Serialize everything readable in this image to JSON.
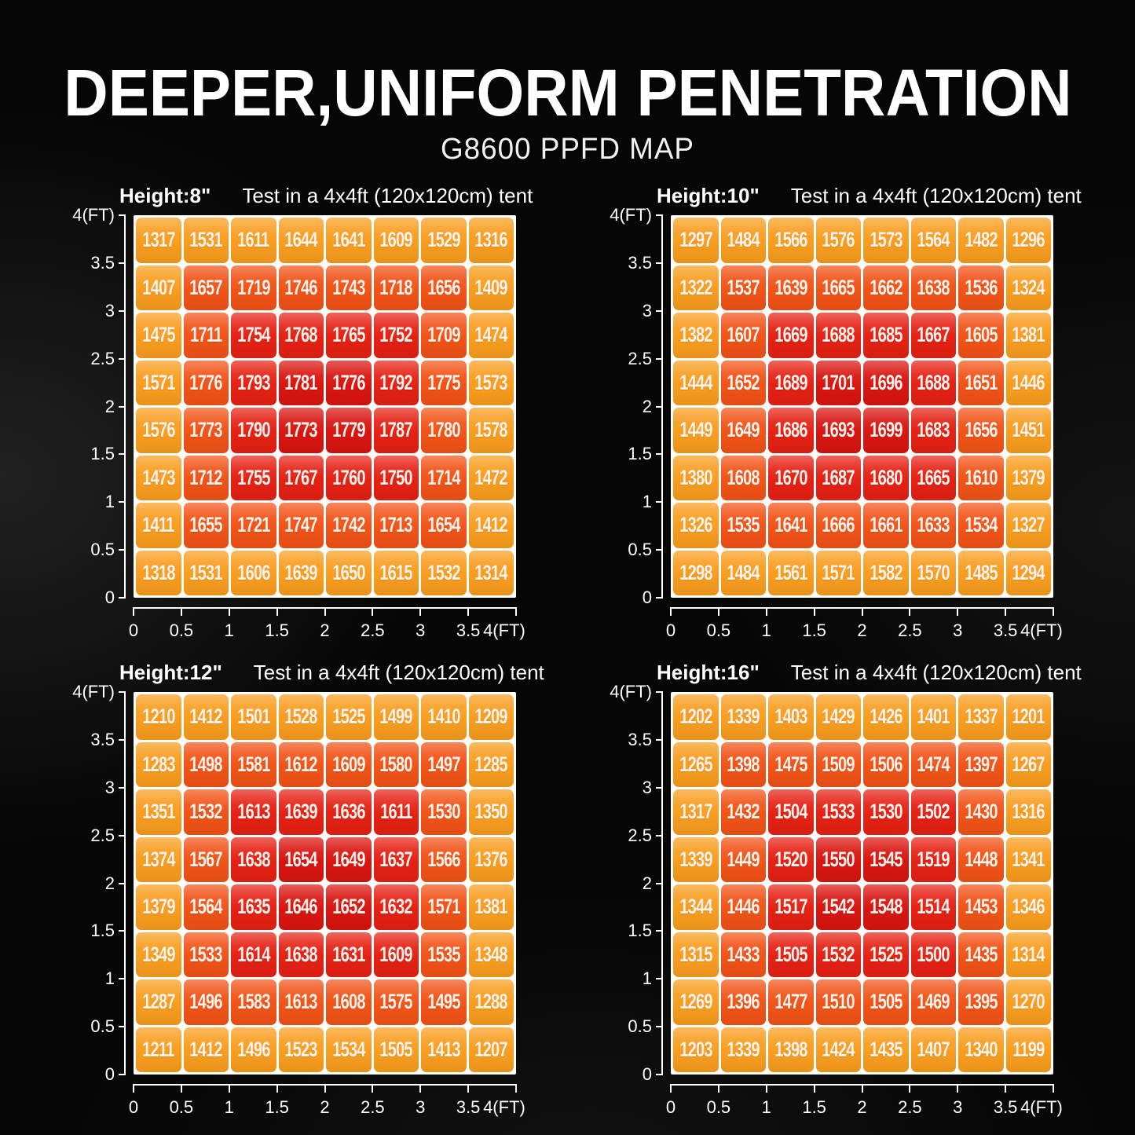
{
  "header": {
    "title": "DEEPER,UNIFORM PENETRATION",
    "subtitle": "G8600 PPFD MAP"
  },
  "colors": {
    "background": "#060606",
    "text": "#ffffff",
    "grid_line": "#ffffff",
    "ring_colors": [
      "#da1510",
      "#e62114",
      "#f25317",
      "#f99d1e"
    ]
  },
  "axis": {
    "y_ticks": [
      "4(FT)",
      "3.5",
      "3",
      "2.5",
      "2",
      "1.5",
      "1",
      "0.5",
      "0"
    ],
    "x_ticks": [
      "0",
      "0.5",
      "1",
      "1.5",
      "2",
      "2.5",
      "3",
      "3.5",
      "4(FT)"
    ]
  },
  "chart_data": [
    {
      "type": "heatmap",
      "height_label": "Height:8\"",
      "tent_label": "Test in a 4x4ft (120x120cm) tent",
      "x_range": [
        0,
        4
      ],
      "y_range": [
        0,
        4
      ],
      "values": [
        [
          1317,
          1531,
          1611,
          1644,
          1641,
          1609,
          1529,
          1316
        ],
        [
          1407,
          1657,
          1719,
          1746,
          1743,
          1718,
          1656,
          1409
        ],
        [
          1475,
          1711,
          1754,
          1768,
          1765,
          1752,
          1709,
          1474
        ],
        [
          1571,
          1776,
          1793,
          1781,
          1776,
          1792,
          1775,
          1573
        ],
        [
          1576,
          1773,
          1790,
          1773,
          1779,
          1787,
          1780,
          1578
        ],
        [
          1473,
          1712,
          1755,
          1767,
          1760,
          1750,
          1714,
          1472
        ],
        [
          1411,
          1655,
          1721,
          1747,
          1742,
          1713,
          1654,
          1412
        ],
        [
          1318,
          1531,
          1606,
          1639,
          1650,
          1615,
          1532,
          1314
        ]
      ]
    },
    {
      "type": "heatmap",
      "height_label": "Height:10\"",
      "tent_label": "Test in a 4x4ft (120x120cm) tent",
      "x_range": [
        0,
        4
      ],
      "y_range": [
        0,
        4
      ],
      "values": [
        [
          1297,
          1484,
          1566,
          1576,
          1573,
          1564,
          1482,
          1296
        ],
        [
          1322,
          1537,
          1639,
          1665,
          1662,
          1638,
          1536,
          1324
        ],
        [
          1382,
          1607,
          1669,
          1688,
          1685,
          1667,
          1605,
          1381
        ],
        [
          1444,
          1652,
          1689,
          1701,
          1696,
          1688,
          1651,
          1446
        ],
        [
          1449,
          1649,
          1686,
          1693,
          1699,
          1683,
          1656,
          1451
        ],
        [
          1380,
          1608,
          1670,
          1687,
          1680,
          1665,
          1610,
          1379
        ],
        [
          1326,
          1535,
          1641,
          1666,
          1661,
          1633,
          1534,
          1327
        ],
        [
          1298,
          1484,
          1561,
          1571,
          1582,
          1570,
          1485,
          1294
        ]
      ]
    },
    {
      "type": "heatmap",
      "height_label": "Height:12\"",
      "tent_label": "Test in a 4x4ft (120x120cm) tent",
      "x_range": [
        0,
        4
      ],
      "y_range": [
        0,
        4
      ],
      "values": [
        [
          1210,
          1412,
          1501,
          1528,
          1525,
          1499,
          1410,
          1209
        ],
        [
          1283,
          1498,
          1581,
          1612,
          1609,
          1580,
          1497,
          1285
        ],
        [
          1351,
          1532,
          1613,
          1639,
          1636,
          1611,
          1530,
          1350
        ],
        [
          1374,
          1567,
          1638,
          1654,
          1649,
          1637,
          1566,
          1376
        ],
        [
          1379,
          1564,
          1635,
          1646,
          1652,
          1632,
          1571,
          1381
        ],
        [
          1349,
          1533,
          1614,
          1638,
          1631,
          1609,
          1535,
          1348
        ],
        [
          1287,
          1496,
          1583,
          1613,
          1608,
          1575,
          1495,
          1288
        ],
        [
          1211,
          1412,
          1496,
          1523,
          1534,
          1505,
          1413,
          1207
        ]
      ]
    },
    {
      "type": "heatmap",
      "height_label": "Height:16\"",
      "tent_label": "Test in a 4x4ft (120x120cm) tent",
      "x_range": [
        0,
        4
      ],
      "y_range": [
        0,
        4
      ],
      "values": [
        [
          1202,
          1339,
          1403,
          1429,
          1426,
          1401,
          1337,
          1201
        ],
        [
          1265,
          1398,
          1475,
          1509,
          1506,
          1474,
          1397,
          1267
        ],
        [
          1317,
          1432,
          1504,
          1533,
          1530,
          1502,
          1430,
          1316
        ],
        [
          1339,
          1449,
          1520,
          1550,
          1545,
          1519,
          1448,
          1341
        ],
        [
          1344,
          1446,
          1517,
          1542,
          1548,
          1514,
          1453,
          1346
        ],
        [
          1315,
          1433,
          1505,
          1532,
          1525,
          1500,
          1435,
          1314
        ],
        [
          1269,
          1396,
          1477,
          1510,
          1505,
          1469,
          1395,
          1270
        ],
        [
          1203,
          1339,
          1398,
          1424,
          1435,
          1407,
          1340,
          1199
        ]
      ]
    }
  ]
}
